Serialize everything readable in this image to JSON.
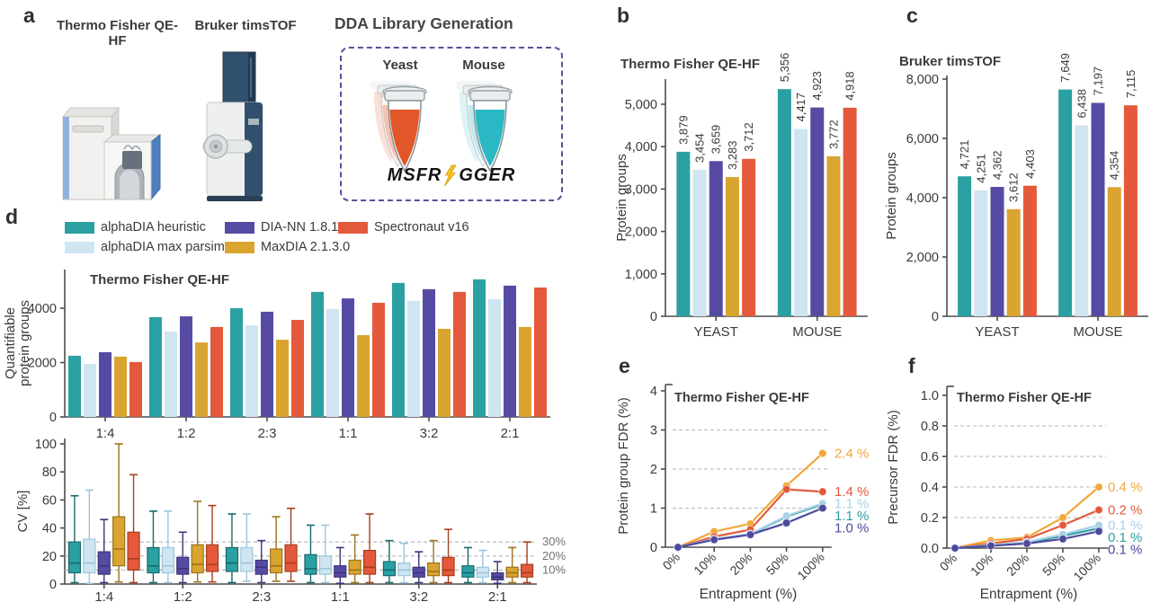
{
  "letters": [
    "a",
    "b",
    "c",
    "d",
    "e",
    "f"
  ],
  "colors": {
    "teal": "#2ba0a3",
    "lightblue": "#cfe5f1",
    "purple": "#564ba2",
    "gold": "#d9a430",
    "red": "#e4593b",
    "gold_line": "#f1a83a",
    "lightblue_line": "#a8d2e8",
    "purple_line": "#4b4a9e",
    "yeast": "#e1572a",
    "yeast_ghost": "#f2b39c",
    "mouse": "#2ab9c4",
    "mouse_ghost": "#aee4e9",
    "axis": "#4d4d4d",
    "grid": "#b5b5b5",
    "text": "#3a3a3a",
    "dda_border": "#55519b",
    "bolt": "#f6c51e"
  },
  "strokes": {
    "teal": "#17696c",
    "lightblue": "#9cc6db",
    "purple": "#3c3579",
    "gold": "#9c731d",
    "red": "#a63e20"
  },
  "panel_a": {
    "instrument_left": "Thermo Fisher QE-HF",
    "instrument_right": "Bruker timsTOF",
    "dda_title": "DDA Library Generation",
    "yeast_label": "Yeast",
    "mouse_label": "Mouse",
    "logo_left": "MSFR",
    "logo_right": "GGER"
  },
  "legend": {
    "items": [
      {
        "label": "alphaDIA heuristic",
        "color": "teal"
      },
      {
        "label": "alphaDIA max parsimony",
        "color": "lightblue"
      },
      {
        "label": "DIA-NN 1.8.1",
        "color": "purple"
      },
      {
        "label": "MaxDIA 2.1.3.0",
        "color": "gold"
      },
      {
        "label": "Spectronaut v16",
        "color": "red"
      }
    ]
  },
  "chart_data": [
    {
      "id": "b",
      "type": "bar",
      "title": "Thermo Fisher QE-HF",
      "ylabel": [
        "Protein groups"
      ],
      "categories": [
        "YEAST",
        "MOUSE"
      ],
      "yticks": [
        0,
        1000,
        2000,
        3000,
        4000,
        5000
      ],
      "tick_format": "comma",
      "value_labels": true,
      "series": [
        {
          "name": "alphaDIA heuristic",
          "color": "teal",
          "values": [
            3879,
            5356
          ]
        },
        {
          "name": "alphaDIA max parsimony",
          "color": "lightblue",
          "values": [
            3454,
            4417
          ]
        },
        {
          "name": "DIA-NN 1.8.1",
          "color": "purple",
          "values": [
            3659,
            4923
          ]
        },
        {
          "name": "MaxDIA 2.1.3.0",
          "color": "gold",
          "values": [
            3283,
            3772
          ]
        },
        {
          "name": "Spectronaut v16",
          "color": "red",
          "values": [
            3712,
            4918
          ]
        }
      ]
    },
    {
      "id": "c",
      "type": "bar",
      "title": "Bruker timsTOF",
      "ylabel": [
        "Protein groups"
      ],
      "categories": [
        "YEAST",
        "MOUSE"
      ],
      "yticks": [
        0,
        2000,
        4000,
        6000,
        8000
      ],
      "tick_format": "comma",
      "value_labels": true,
      "series": [
        {
          "name": "alphaDIA heuristic",
          "color": "teal",
          "values": [
            4721,
            7649
          ]
        },
        {
          "name": "alphaDIA max parsimony",
          "color": "lightblue",
          "values": [
            4251,
            6438
          ]
        },
        {
          "name": "DIA-NN 1.8.1",
          "color": "purple",
          "values": [
            4362,
            7197
          ]
        },
        {
          "name": "MaxDIA 2.1.3.0",
          "color": "gold",
          "values": [
            3612,
            4354
          ]
        },
        {
          "name": "Spectronaut v16",
          "color": "red",
          "values": [
            4403,
            7115
          ]
        }
      ]
    },
    {
      "id": "dbar",
      "type": "bar",
      "title": "Thermo Fisher QE-HF",
      "ylabel": [
        "Quantifiable",
        "protein groups"
      ],
      "categories": [
        "1:4",
        "1:2",
        "2:3",
        "1:1",
        "3:2",
        "2:1"
      ],
      "yticks": [
        0,
        2000,
        4000
      ],
      "tick_format": "plain",
      "value_labels": false,
      "series": [
        {
          "name": "alphaDIA heuristic",
          "color": "teal",
          "values": [
            2250,
            3670,
            4000,
            4600,
            4930,
            5060
          ]
        },
        {
          "name": "alphaDIA max parsimony",
          "color": "lightblue",
          "values": [
            1950,
            3140,
            3370,
            3970,
            4270,
            4330
          ]
        },
        {
          "name": "DIA-NN 1.8.1",
          "color": "purple",
          "values": [
            2380,
            3700,
            3870,
            4360,
            4700,
            4830
          ]
        },
        {
          "name": "MaxDIA 2.1.3.0",
          "color": "gold",
          "values": [
            2220,
            2740,
            2840,
            3010,
            3240,
            3310
          ]
        },
        {
          "name": "Spectronaut v16",
          "color": "red",
          "values": [
            2020,
            3310,
            3570,
            4200,
            4600,
            4760
          ]
        }
      ]
    },
    {
      "id": "dbox",
      "type": "box",
      "ylabel": [
        "CV [%]"
      ],
      "categories": [
        "1:4",
        "1:2",
        "2:3",
        "1:1",
        "3:2",
        "2:1"
      ],
      "yticks": [
        0,
        20,
        40,
        60,
        80,
        100
      ],
      "tick_format": "plain",
      "ref_lines": [
        {
          "value": 30,
          "label": "30%"
        },
        {
          "value": 20,
          "label": "20%"
        },
        {
          "value": 10,
          "label": "10%"
        }
      ],
      "series": [
        {
          "name": "alphaDIA heuristic",
          "color": "teal",
          "stats": [
            [
              1,
              8,
              15,
              30,
              63
            ],
            [
              1,
              8,
              13,
              26,
              52
            ],
            [
              1,
              9,
              15,
              26,
              50
            ],
            [
              1,
              7,
              11,
              21,
              42
            ],
            [
              1,
              6,
              10,
              16,
              31
            ],
            [
              1,
              5,
              8,
              13,
              26
            ]
          ]
        },
        {
          "name": "alphaDIA max parsimony",
          "color": "lightblue",
          "stats": [
            [
              0.5,
              8,
              15,
              32,
              67
            ],
            [
              1,
              8,
              13,
              26,
              52
            ],
            [
              2,
              9,
              15,
              26,
              50
            ],
            [
              1,
              7,
              11,
              20,
              42
            ],
            [
              1,
              6,
              10,
              15,
              29
            ],
            [
              1,
              5,
              8,
              12,
              24
            ]
          ]
        },
        {
          "name": "DIA-NN 1.8.1",
          "color": "purple",
          "stats": [
            [
              1,
              7,
              13,
              23,
              46
            ],
            [
              1,
              7,
              11,
              19,
              37
            ],
            [
              1,
              7,
              12,
              17,
              31
            ],
            [
              0.5,
              5,
              8,
              13,
              26
            ],
            [
              1,
              5,
              8,
              12,
              23
            ],
            [
              0.5,
              3,
              5,
              8,
              16
            ]
          ]
        },
        {
          "name": "MaxDIA 2.1.3.0",
          "color": "gold",
          "stats": [
            [
              1.5,
              13,
              25,
              48,
              100
            ],
            [
              1.5,
              8,
              14,
              28,
              59
            ],
            [
              2,
              8,
              13,
              25,
              48
            ],
            [
              1,
              7,
              10,
              17,
              35
            ],
            [
              1,
              6,
              9,
              15,
              31
            ],
            [
              1,
              5,
              8,
              12,
              26
            ]
          ]
        },
        {
          "name": "Spectronaut v16",
          "color": "red",
          "stats": [
            [
              1,
              10,
              18,
              37,
              78
            ],
            [
              1.5,
              9,
              14,
              28,
              56
            ],
            [
              2,
              9,
              15,
              28,
              54
            ],
            [
              1,
              7,
              12,
              24,
              50
            ],
            [
              1,
              6,
              10,
              19,
              39
            ],
            [
              1,
              5,
              8,
              14,
              30
            ]
          ]
        }
      ]
    },
    {
      "id": "e",
      "type": "line",
      "title": "Thermo Fisher QE-HF",
      "ylabel": [
        "Protein group FDR (%)"
      ],
      "xlabel": "Entrapment (%)",
      "xticklabels": [
        "0%",
        "10%",
        "20%",
        "50%",
        "100%"
      ],
      "yticks": [
        0,
        1,
        2,
        3,
        4
      ],
      "grid": [
        1,
        2,
        3
      ],
      "tick_format": "plain",
      "series": [
        {
          "name": "MaxDIA 2.1.3.0",
          "color": "gold_line",
          "values": [
            0,
            0.4,
            0.6,
            1.57,
            2.4
          ],
          "end_label": "2.4 %"
        },
        {
          "name": "Spectronaut v16",
          "color": "red",
          "values": [
            0,
            0.27,
            0.45,
            1.48,
            1.42
          ],
          "end_label": "1.4 %"
        },
        {
          "name": "alphaDIA heuristic",
          "color": "teal",
          "values": [
            0,
            0.2,
            0.33,
            0.78,
            1.1
          ],
          "end_label": "1.1 %"
        },
        {
          "name": "alphaDIA max parsimony",
          "color": "lightblue_line",
          "values": [
            0,
            0.21,
            0.34,
            0.8,
            1.12
          ],
          "end_label": "1.1 %"
        },
        {
          "name": "DIA-NN 1.8.1",
          "color": "purple_line",
          "values": [
            0,
            0.19,
            0.32,
            0.62,
            1.0
          ],
          "end_label": "1.0 %"
        }
      ]
    },
    {
      "id": "f",
      "type": "line",
      "title": "Thermo Fisher QE-HF",
      "ylabel": [
        "Precursor FDR (%)"
      ],
      "xlabel": "Entrapment (%)",
      "xticklabels": [
        "0%",
        "10%",
        "20%",
        "50%",
        "100%"
      ],
      "yticks": [
        0,
        0.2,
        0.4,
        0.6,
        0.8,
        1.0
      ],
      "grid": [
        0.2,
        0.4,
        0.6,
        0.8
      ],
      "tick_format": "1dp",
      "series": [
        {
          "name": "MaxDIA 2.1.3.0",
          "color": "gold_line",
          "values": [
            0,
            0.05,
            0.07,
            0.2,
            0.4
          ],
          "end_label": "0.4 %"
        },
        {
          "name": "Spectronaut v16",
          "color": "red",
          "values": [
            0,
            0.03,
            0.06,
            0.15,
            0.25
          ],
          "end_label": "0.2 %"
        },
        {
          "name": "alphaDIA heuristic",
          "color": "teal",
          "values": [
            0,
            0.02,
            0.035,
            0.08,
            0.13
          ],
          "end_label": "0.1 %"
        },
        {
          "name": "alphaDIA max parsimony",
          "color": "lightblue_line",
          "values": [
            0,
            0.02,
            0.04,
            0.09,
            0.15
          ],
          "end_label": "0.1 %"
        },
        {
          "name": "DIA-NN 1.8.1",
          "color": "purple_line",
          "values": [
            0,
            0.015,
            0.03,
            0.06,
            0.11
          ],
          "end_label": "0.1 %"
        }
      ]
    }
  ]
}
